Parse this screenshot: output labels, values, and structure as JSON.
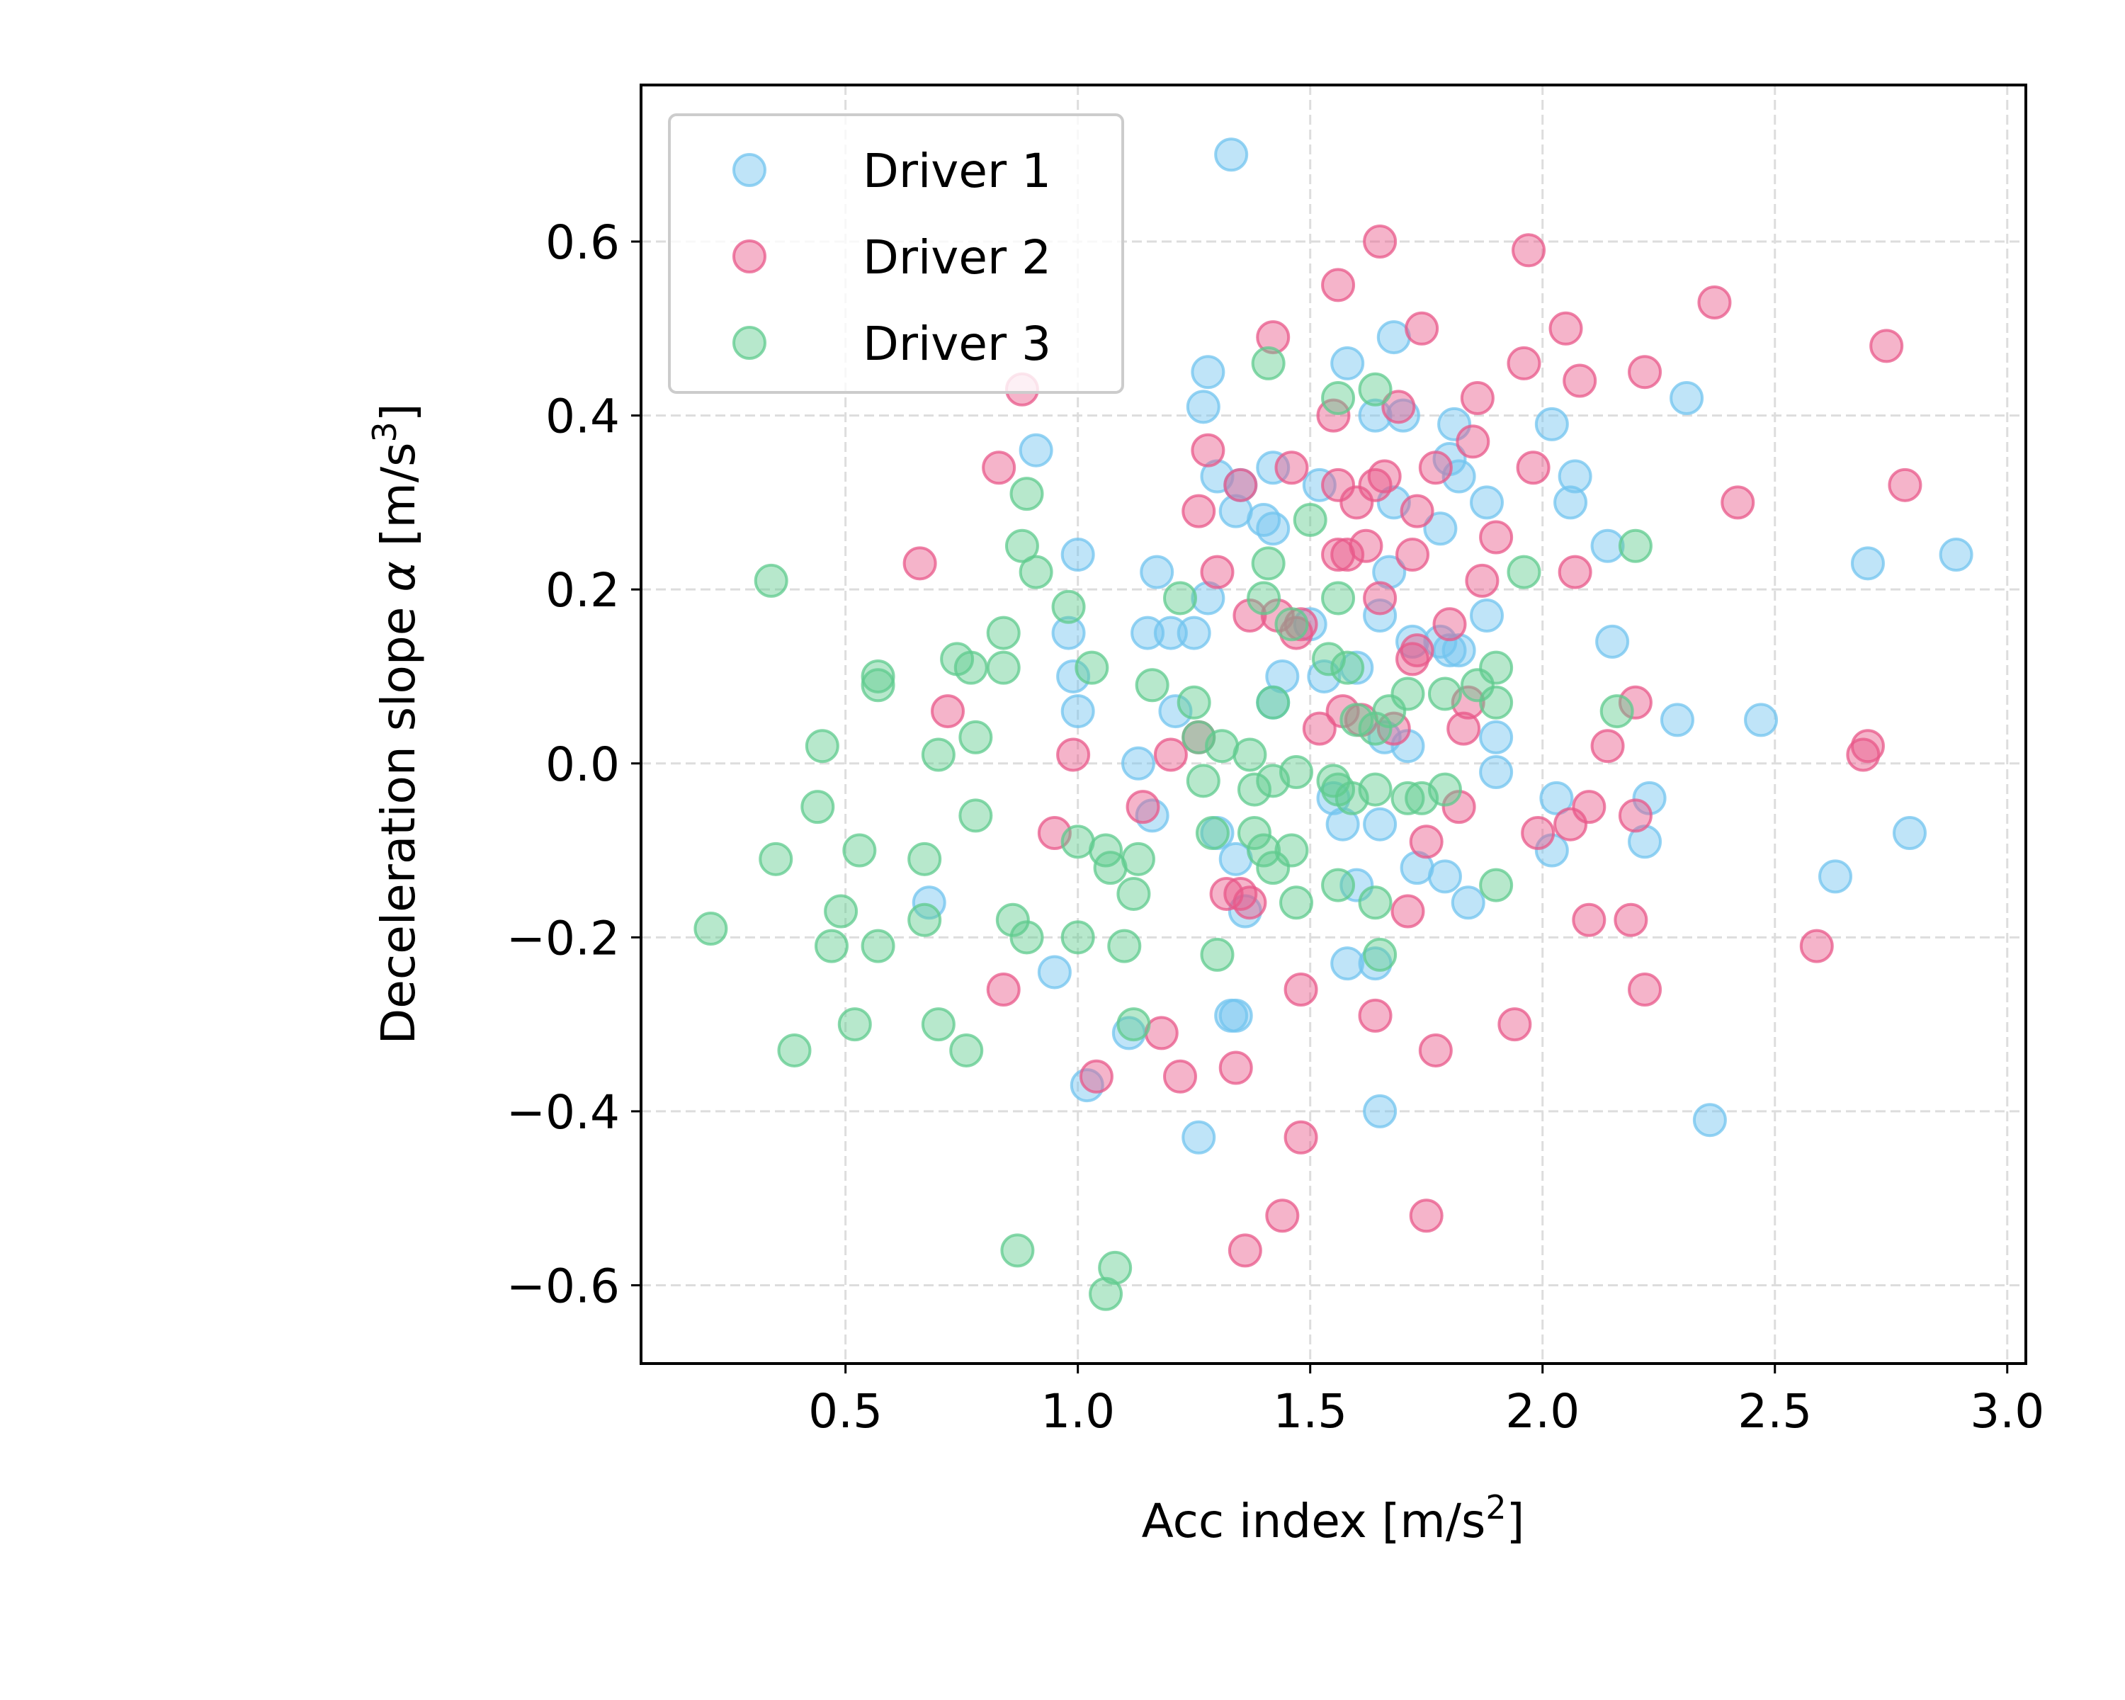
{
  "chart_data": {
    "type": "scatter",
    "title": "",
    "xlabel": {
      "text": "Acc index [m/s",
      "sup": "2",
      "suffix": "]"
    },
    "ylabel": {
      "text": "Deceleration slope ",
      "symbol": "α",
      "unit": " [m/s",
      "sup": "3",
      "suffix": "]"
    },
    "xlim": [
      0.06,
      3.04
    ],
    "ylim": [
      -0.69,
      0.78
    ],
    "xticks": [
      0.5,
      1.0,
      1.5,
      2.0,
      2.5,
      3.0
    ],
    "xtick_labels": [
      "0.5",
      "1.0",
      "1.5",
      "2.0",
      "2.5",
      "3.0"
    ],
    "yticks": [
      -0.6,
      -0.4,
      -0.2,
      0.0,
      0.2,
      0.4,
      0.6
    ],
    "ytick_labels": [
      "−0.6",
      "−0.4",
      "−0.2",
      "0.0",
      "0.2",
      "0.4",
      "0.6"
    ],
    "grid": true,
    "legend_position": "upper-left",
    "series": [
      {
        "name": "Driver 1",
        "color": "#72c4ef",
        "points": [
          [
            1.33,
            0.7
          ],
          [
            1.28,
            0.45
          ],
          [
            1.27,
            0.41
          ],
          [
            1.3,
            0.33
          ],
          [
            1.34,
            0.29
          ],
          [
            1.35,
            0.32
          ],
          [
            1.42,
            0.34
          ],
          [
            1.4,
            0.28
          ],
          [
            1.42,
            0.27
          ],
          [
            1.58,
            0.46
          ],
          [
            1.68,
            0.49
          ],
          [
            1.64,
            0.4
          ],
          [
            1.7,
            0.4
          ],
          [
            1.81,
            0.39
          ],
          [
            1.8,
            0.35
          ],
          [
            1.82,
            0.33
          ],
          [
            1.78,
            0.27
          ],
          [
            1.88,
            0.3
          ],
          [
            2.02,
            0.39
          ],
          [
            2.07,
            0.33
          ],
          [
            2.06,
            0.3
          ],
          [
            2.31,
            0.42
          ],
          [
            2.14,
            0.25
          ],
          [
            2.7,
            0.23
          ],
          [
            2.89,
            0.24
          ],
          [
            0.91,
            0.36
          ],
          [
            1.0,
            0.24
          ],
          [
            0.98,
            0.15
          ],
          [
            0.99,
            0.1
          ],
          [
            1.0,
            0.06
          ],
          [
            1.17,
            0.22
          ],
          [
            1.15,
            0.15
          ],
          [
            1.2,
            0.15
          ],
          [
            1.25,
            0.15
          ],
          [
            1.28,
            0.19
          ],
          [
            1.21,
            0.06
          ],
          [
            1.13,
            0.0
          ],
          [
            1.16,
            -0.06
          ],
          [
            1.3,
            -0.08
          ],
          [
            1.34,
            -0.11
          ],
          [
            1.36,
            -0.17
          ],
          [
            1.42,
            0.07
          ],
          [
            1.44,
            0.1
          ],
          [
            1.5,
            0.16
          ],
          [
            1.52,
            0.32
          ],
          [
            1.53,
            0.1
          ],
          [
            1.55,
            -0.04
          ],
          [
            1.57,
            -0.07
          ],
          [
            1.6,
            0.11
          ],
          [
            1.65,
            0.17
          ],
          [
            1.67,
            0.22
          ],
          [
            1.68,
            0.3
          ],
          [
            1.72,
            0.14
          ],
          [
            1.78,
            0.14
          ],
          [
            1.8,
            0.13
          ],
          [
            1.82,
            0.13
          ],
          [
            1.88,
            0.17
          ],
          [
            1.9,
            0.03
          ],
          [
            1.9,
            -0.01
          ],
          [
            1.65,
            -0.07
          ],
          [
            1.6,
            -0.14
          ],
          [
            1.58,
            -0.23
          ],
          [
            1.64,
            -0.23
          ],
          [
            1.65,
            -0.4
          ],
          [
            1.73,
            -0.12
          ],
          [
            1.79,
            -0.13
          ],
          [
            1.84,
            -0.16
          ],
          [
            2.03,
            -0.04
          ],
          [
            2.02,
            -0.1
          ],
          [
            2.23,
            -0.04
          ],
          [
            2.22,
            -0.09
          ],
          [
            2.29,
            0.05
          ],
          [
            2.47,
            0.05
          ],
          [
            2.15,
            0.14
          ],
          [
            2.79,
            -0.08
          ],
          [
            2.63,
            -0.13
          ],
          [
            2.36,
            -0.41
          ],
          [
            1.34,
            -0.29
          ],
          [
            1.33,
            -0.29
          ],
          [
            1.26,
            -0.43
          ],
          [
            1.11,
            -0.31
          ],
          [
            1.02,
            -0.37
          ],
          [
            0.95,
            -0.24
          ],
          [
            0.68,
            -0.16
          ],
          [
            1.66,
            0.03
          ],
          [
            1.71,
            0.02
          ]
        ]
      },
      {
        "name": "Driver 2",
        "color": "#e8588a",
        "points": [
          [
            1.65,
            0.6
          ],
          [
            1.97,
            0.59
          ],
          [
            1.56,
            0.55
          ],
          [
            2.37,
            0.53
          ],
          [
            1.74,
            0.5
          ],
          [
            2.05,
            0.5
          ],
          [
            2.74,
            0.48
          ],
          [
            2.08,
            0.44
          ],
          [
            2.22,
            0.45
          ],
          [
            1.42,
            0.49
          ],
          [
            1.96,
            0.46
          ],
          [
            0.88,
            0.43
          ],
          [
            1.55,
            0.4
          ],
          [
            1.69,
            0.41
          ],
          [
            1.86,
            0.42
          ],
          [
            1.35,
            0.32
          ],
          [
            1.28,
            0.36
          ],
          [
            1.46,
            0.34
          ],
          [
            1.56,
            0.32
          ],
          [
            1.64,
            0.32
          ],
          [
            1.66,
            0.33
          ],
          [
            1.77,
            0.34
          ],
          [
            1.85,
            0.37
          ],
          [
            1.98,
            0.34
          ],
          [
            2.42,
            0.3
          ],
          [
            2.78,
            0.32
          ],
          [
            0.83,
            0.34
          ],
          [
            0.66,
            0.23
          ],
          [
            1.26,
            0.29
          ],
          [
            1.3,
            0.22
          ],
          [
            1.37,
            0.17
          ],
          [
            1.43,
            0.17
          ],
          [
            1.47,
            0.15
          ],
          [
            1.56,
            0.24
          ],
          [
            1.58,
            0.24
          ],
          [
            1.6,
            0.3
          ],
          [
            1.62,
            0.25
          ],
          [
            1.65,
            0.19
          ],
          [
            1.72,
            0.24
          ],
          [
            1.73,
            0.29
          ],
          [
            1.8,
            0.16
          ],
          [
            1.87,
            0.21
          ],
          [
            1.9,
            0.26
          ],
          [
            2.07,
            0.22
          ],
          [
            2.2,
            0.07
          ],
          [
            2.14,
            0.02
          ],
          [
            2.69,
            0.01
          ],
          [
            2.7,
            0.02
          ],
          [
            0.72,
            0.06
          ],
          [
            0.99,
            0.01
          ],
          [
            1.2,
            0.01
          ],
          [
            1.26,
            0.03
          ],
          [
            1.48,
            0.16
          ],
          [
            1.52,
            0.04
          ],
          [
            1.57,
            0.06
          ],
          [
            1.61,
            0.05
          ],
          [
            1.68,
            0.04
          ],
          [
            1.72,
            0.12
          ],
          [
            1.73,
            0.13
          ],
          [
            1.83,
            0.04
          ],
          [
            1.84,
            0.07
          ],
          [
            1.99,
            -0.08
          ],
          [
            2.06,
            -0.07
          ],
          [
            2.1,
            -0.05
          ],
          [
            2.2,
            -0.06
          ],
          [
            2.1,
            -0.18
          ],
          [
            2.19,
            -0.18
          ],
          [
            2.22,
            -0.26
          ],
          [
            1.94,
            -0.3
          ],
          [
            2.59,
            -0.21
          ],
          [
            1.14,
            -0.05
          ],
          [
            0.95,
            -0.08
          ],
          [
            0.84,
            -0.26
          ],
          [
            1.18,
            -0.31
          ],
          [
            1.22,
            -0.36
          ],
          [
            1.04,
            -0.36
          ],
          [
            1.32,
            -0.15
          ],
          [
            1.35,
            -0.15
          ],
          [
            1.37,
            -0.16
          ],
          [
            1.34,
            -0.35
          ],
          [
            1.48,
            -0.26
          ],
          [
            1.64,
            -0.29
          ],
          [
            1.71,
            -0.17
          ],
          [
            1.75,
            -0.09
          ],
          [
            1.77,
            -0.33
          ],
          [
            1.82,
            -0.05
          ],
          [
            1.48,
            -0.43
          ],
          [
            1.44,
            -0.52
          ],
          [
            1.36,
            -0.56
          ],
          [
            1.75,
            -0.52
          ]
        ]
      },
      {
        "name": "Driver 3",
        "color": "#5fcb8e",
        "points": [
          [
            0.34,
            0.21
          ],
          [
            0.89,
            0.31
          ],
          [
            0.88,
            0.25
          ],
          [
            0.91,
            0.22
          ],
          [
            0.98,
            0.18
          ],
          [
            0.84,
            0.15
          ],
          [
            0.84,
            0.11
          ],
          [
            0.74,
            0.12
          ],
          [
            0.77,
            0.11
          ],
          [
            0.57,
            0.1
          ],
          [
            0.57,
            0.09
          ],
          [
            1.03,
            0.11
          ],
          [
            1.16,
            0.09
          ],
          [
            1.22,
            0.19
          ],
          [
            1.25,
            0.07
          ],
          [
            1.26,
            0.03
          ],
          [
            0.45,
            0.02
          ],
          [
            0.7,
            0.01
          ],
          [
            0.78,
            0.03
          ],
          [
            1.31,
            0.02
          ],
          [
            1.37,
            0.01
          ],
          [
            1.41,
            0.46
          ],
          [
            1.41,
            0.23
          ],
          [
            1.4,
            0.19
          ],
          [
            1.46,
            0.16
          ],
          [
            1.5,
            0.28
          ],
          [
            1.56,
            0.42
          ],
          [
            1.64,
            0.43
          ],
          [
            1.56,
            0.19
          ],
          [
            1.54,
            0.12
          ],
          [
            1.58,
            0.11
          ],
          [
            1.6,
            0.05
          ],
          [
            1.67,
            0.06
          ],
          [
            1.71,
            0.08
          ],
          [
            1.79,
            0.08
          ],
          [
            1.86,
            0.09
          ],
          [
            1.9,
            0.11
          ],
          [
            1.9,
            0.07
          ],
          [
            1.96,
            0.22
          ],
          [
            2.16,
            0.06
          ],
          [
            2.2,
            0.25
          ],
          [
            1.42,
            0.07
          ],
          [
            1.47,
            -0.01
          ],
          [
            1.55,
            -0.02
          ],
          [
            1.56,
            -0.03
          ],
          [
            1.59,
            -0.04
          ],
          [
            1.64,
            -0.03
          ],
          [
            1.71,
            -0.04
          ],
          [
            1.74,
            -0.04
          ],
          [
            1.79,
            -0.03
          ],
          [
            1.38,
            -0.03
          ],
          [
            1.42,
            -0.02
          ],
          [
            1.27,
            -0.02
          ],
          [
            0.44,
            -0.05
          ],
          [
            0.78,
            -0.06
          ],
          [
            0.35,
            -0.11
          ],
          [
            0.53,
            -0.1
          ],
          [
            0.67,
            -0.11
          ],
          [
            1.0,
            -0.09
          ],
          [
            1.06,
            -0.1
          ],
          [
            1.07,
            -0.12
          ],
          [
            1.13,
            -0.11
          ],
          [
            1.12,
            -0.15
          ],
          [
            1.29,
            -0.08
          ],
          [
            1.38,
            -0.08
          ],
          [
            1.4,
            -0.1
          ],
          [
            1.42,
            -0.12
          ],
          [
            1.46,
            -0.1
          ],
          [
            1.56,
            -0.14
          ],
          [
            1.64,
            -0.16
          ],
          [
            1.9,
            -0.14
          ],
          [
            0.21,
            -0.19
          ],
          [
            0.49,
            -0.17
          ],
          [
            0.47,
            -0.21
          ],
          [
            0.57,
            -0.21
          ],
          [
            0.67,
            -0.18
          ],
          [
            0.86,
            -0.18
          ],
          [
            0.89,
            -0.2
          ],
          [
            1.0,
            -0.2
          ],
          [
            1.1,
            -0.21
          ],
          [
            1.3,
            -0.22
          ],
          [
            1.47,
            -0.16
          ],
          [
            1.65,
            -0.22
          ],
          [
            0.52,
            -0.3
          ],
          [
            0.7,
            -0.3
          ],
          [
            0.76,
            -0.33
          ],
          [
            0.39,
            -0.33
          ],
          [
            1.12,
            -0.3
          ],
          [
            0.87,
            -0.56
          ],
          [
            1.08,
            -0.58
          ],
          [
            1.06,
            -0.61
          ],
          [
            1.64,
            0.04
          ]
        ]
      }
    ]
  }
}
